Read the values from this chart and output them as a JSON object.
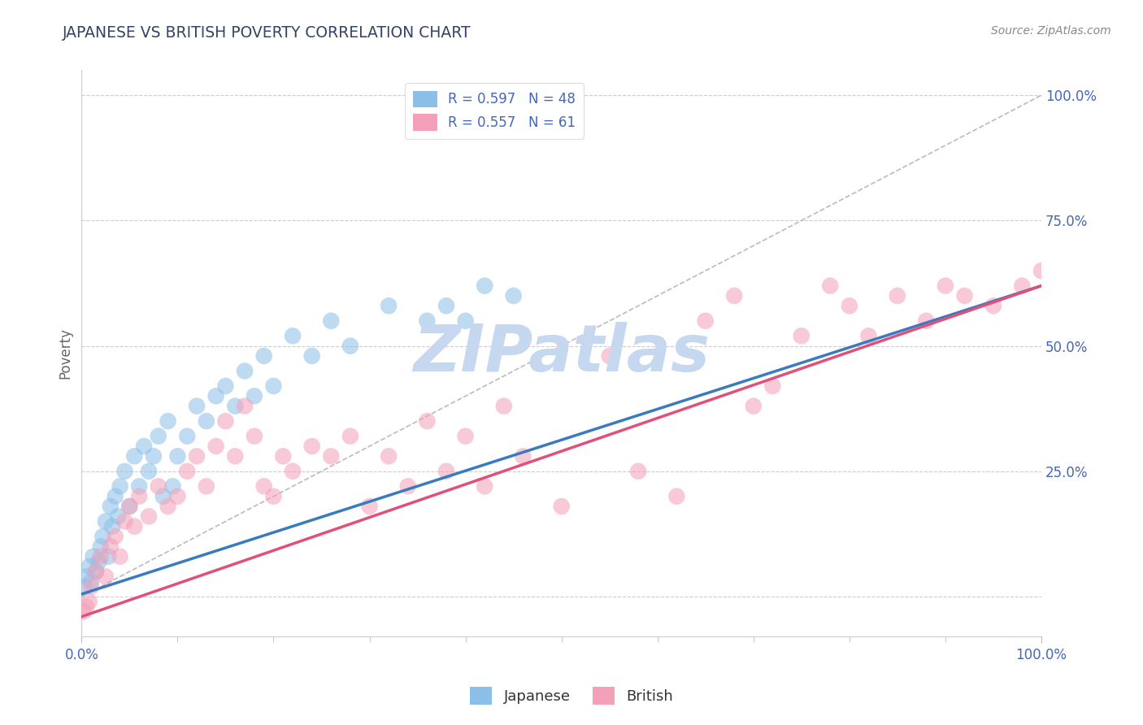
{
  "title": "JAPANESE VS BRITISH POVERTY CORRELATION CHART",
  "source": "Source: ZipAtlas.com",
  "ylabel": "Poverty",
  "watermark": "ZIPatlas",
  "legend_entries": [
    {
      "label": "R = 0.597   N = 48",
      "color": "#8bbfe8"
    },
    {
      "label": "R = 0.557   N = 61",
      "color": "#f4a0b8"
    }
  ],
  "japanese_color": "#8bbfe8",
  "british_color": "#f4a0b8",
  "japanese_line_color": "#3a7abf",
  "british_line_color": "#e0507a",
  "ref_line_color": "#bbbbbb",
  "grid_color": "#cccccc",
  "title_color": "#334466",
  "axis_label_color": "#4466bb",
  "watermark_color": "#c5d8f0",
  "background_color": "#ffffff",
  "xlim": [
    0,
    100
  ],
  "ylim": [
    -8,
    105
  ],
  "yticks": [
    0,
    25,
    50,
    75,
    100
  ],
  "ytick_labels": [
    "",
    "25.0%",
    "50.0%",
    "75.0%",
    "100.0%"
  ],
  "xtick_labels": [
    "0.0%",
    "100.0%"
  ],
  "japanese_x": [
    0.3,
    0.5,
    0.8,
    1.0,
    1.2,
    1.5,
    1.8,
    2.0,
    2.2,
    2.5,
    2.8,
    3.0,
    3.2,
    3.5,
    3.8,
    4.0,
    4.5,
    5.0,
    5.5,
    6.0,
    6.5,
    7.0,
    7.5,
    8.0,
    8.5,
    9.0,
    9.5,
    10.0,
    11.0,
    12.0,
    13.0,
    14.0,
    15.0,
    16.0,
    17.0,
    18.0,
    19.0,
    20.0,
    22.0,
    24.0,
    26.0,
    28.0,
    32.0,
    36.0,
    38.0,
    40.0,
    42.0,
    45.0
  ],
  "japanese_y": [
    2.0,
    4.0,
    6.0,
    3.0,
    8.0,
    5.0,
    7.0,
    10.0,
    12.0,
    15.0,
    8.0,
    18.0,
    14.0,
    20.0,
    16.0,
    22.0,
    25.0,
    18.0,
    28.0,
    22.0,
    30.0,
    25.0,
    28.0,
    32.0,
    20.0,
    35.0,
    22.0,
    28.0,
    32.0,
    38.0,
    35.0,
    40.0,
    42.0,
    38.0,
    45.0,
    40.0,
    48.0,
    42.0,
    52.0,
    48.0,
    55.0,
    50.0,
    58.0,
    55.0,
    58.0,
    55.0,
    62.0,
    60.0
  ],
  "british_x": [
    0.2,
    0.5,
    0.8,
    1.0,
    1.5,
    2.0,
    2.5,
    3.0,
    3.5,
    4.0,
    4.5,
    5.0,
    5.5,
    6.0,
    7.0,
    8.0,
    9.0,
    10.0,
    11.0,
    12.0,
    13.0,
    14.0,
    15.0,
    16.0,
    17.0,
    18.0,
    19.0,
    20.0,
    21.0,
    22.0,
    24.0,
    26.0,
    28.0,
    30.0,
    32.0,
    34.0,
    36.0,
    38.0,
    40.0,
    42.0,
    44.0,
    46.0,
    50.0,
    55.0,
    58.0,
    62.0,
    65.0,
    68.0,
    70.0,
    72.0,
    75.0,
    78.0,
    80.0,
    82.0,
    85.0,
    88.0,
    90.0,
    92.0,
    95.0,
    98.0,
    100.0
  ],
  "british_y": [
    -3.0,
    -2.0,
    -1.0,
    2.0,
    5.0,
    8.0,
    4.0,
    10.0,
    12.0,
    8.0,
    15.0,
    18.0,
    14.0,
    20.0,
    16.0,
    22.0,
    18.0,
    20.0,
    25.0,
    28.0,
    22.0,
    30.0,
    35.0,
    28.0,
    38.0,
    32.0,
    22.0,
    20.0,
    28.0,
    25.0,
    30.0,
    28.0,
    32.0,
    18.0,
    28.0,
    22.0,
    35.0,
    25.0,
    32.0,
    22.0,
    38.0,
    28.0,
    18.0,
    48.0,
    25.0,
    20.0,
    55.0,
    60.0,
    38.0,
    42.0,
    52.0,
    62.0,
    58.0,
    52.0,
    60.0,
    55.0,
    62.0,
    60.0,
    58.0,
    62.0,
    65.0
  ]
}
